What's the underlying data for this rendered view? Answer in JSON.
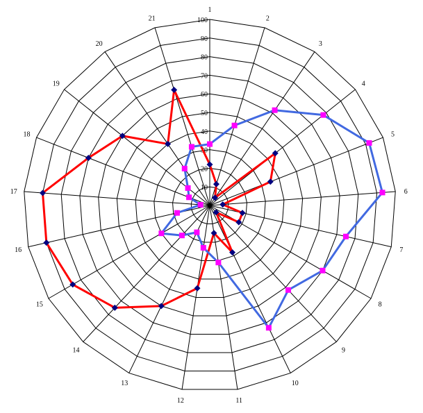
{
  "chart_data": {
    "type": "radar",
    "categories": [
      "1",
      "2",
      "3",
      "4",
      "5",
      "6",
      "7",
      "8",
      "9",
      "10",
      "11",
      "12",
      "13",
      "14",
      "15",
      "16",
      "17",
      "18",
      "19",
      "20",
      "21"
    ],
    "radial_ticks": [
      "10",
      "20",
      "30",
      "40",
      "50",
      "60",
      "70",
      "80",
      "90",
      "100"
    ],
    "rlim": [
      0,
      100
    ],
    "grid": true,
    "series": [
      {
        "color": "#ff0000",
        "marker_color": "#000080",
        "marker": "diamond",
        "values": [
          22,
          12,
          5,
          45,
          35,
          7,
          18,
          18,
          5,
          28,
          15,
          45,
          60,
          75,
          85,
          90,
          90,
          70,
          60,
          40,
          65
        ]
      },
      {
        "color": "#4169e1",
        "marker_color": "#ff00ff",
        "marker": "square",
        "values": [
          33,
          45,
          62,
          78,
          92,
          93,
          75,
          70,
          62,
          73,
          31,
          23,
          16,
          22,
          30,
          18,
          5,
          12,
          15,
          24,
          33
        ]
      }
    ]
  }
}
